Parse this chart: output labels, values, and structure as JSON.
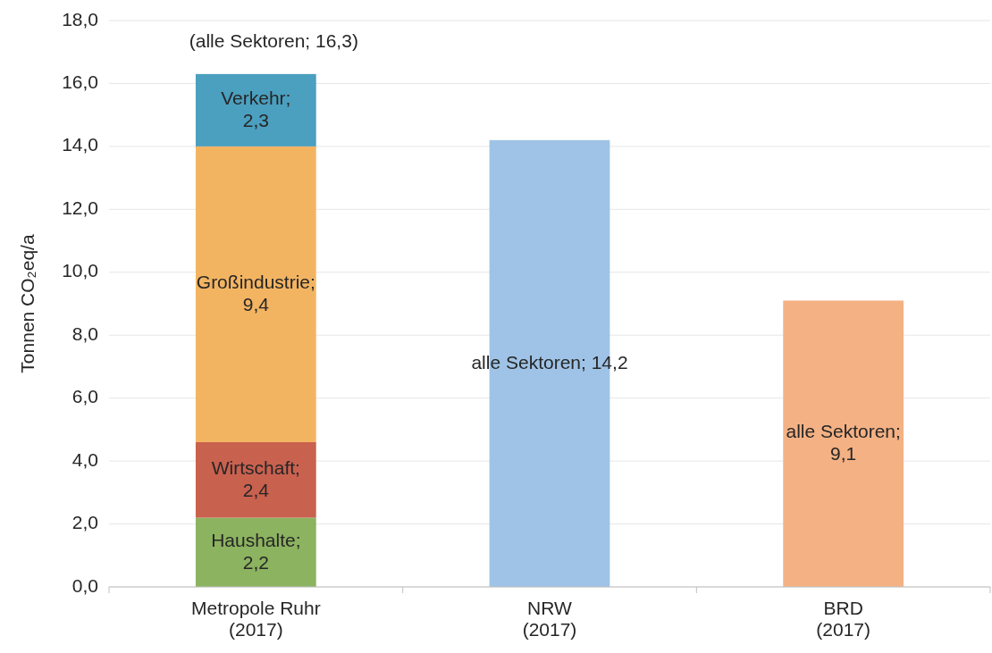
{
  "chart_data": {
    "type": "bar",
    "stacked": true,
    "ylabel": "Tonnen CO₂eq/a",
    "categories": [
      "Metropole Ruhr\n(2017)",
      "NRW\n(2017)",
      "BRD\n(2017)"
    ],
    "series": [
      {
        "name": "Haushalte;",
        "color": "#8cb360",
        "values": [
          2.2,
          null,
          null
        ],
        "value_labels": [
          "2,2",
          null,
          null
        ]
      },
      {
        "name": "Wirtschaft;",
        "color": "#c9614f",
        "values": [
          2.4,
          null,
          null
        ],
        "value_labels": [
          "2,4",
          null,
          null
        ]
      },
      {
        "name": "Großindustrie;",
        "color": "#f3b462",
        "values": [
          9.4,
          null,
          null
        ],
        "value_labels": [
          "9,4",
          null,
          null
        ]
      },
      {
        "name": "Verkehr;",
        "color": "#4b9fbf",
        "values": [
          2.3,
          null,
          null
        ],
        "value_labels": [
          "2,3",
          null,
          null
        ]
      },
      {
        "name": "alle Sektoren;",
        "colors": [
          null,
          "#9fc3e6",
          "#f4b184"
        ],
        "values": [
          null,
          14.2,
          9.1
        ],
        "value_labels": [
          null,
          "14,2",
          "9,1"
        ]
      }
    ],
    "totals": [
      "(alle Sektoren; 16,3)",
      null,
      null
    ],
    "ylim": [
      0,
      18
    ],
    "yticks": [
      {
        "value": 0,
        "label": "0,0"
      },
      {
        "value": 2,
        "label": "2,0"
      },
      {
        "value": 4,
        "label": "4,0"
      },
      {
        "value": 6,
        "label": "6,0"
      },
      {
        "value": 8,
        "label": "8,0"
      },
      {
        "value": 10,
        "label": "10,0"
      },
      {
        "value": 12,
        "label": "12,0"
      },
      {
        "value": 14,
        "label": "14,0"
      },
      {
        "value": 16,
        "label": "16,0"
      },
      {
        "value": 18,
        "label": "18,0"
      }
    ],
    "grid": "y"
  }
}
